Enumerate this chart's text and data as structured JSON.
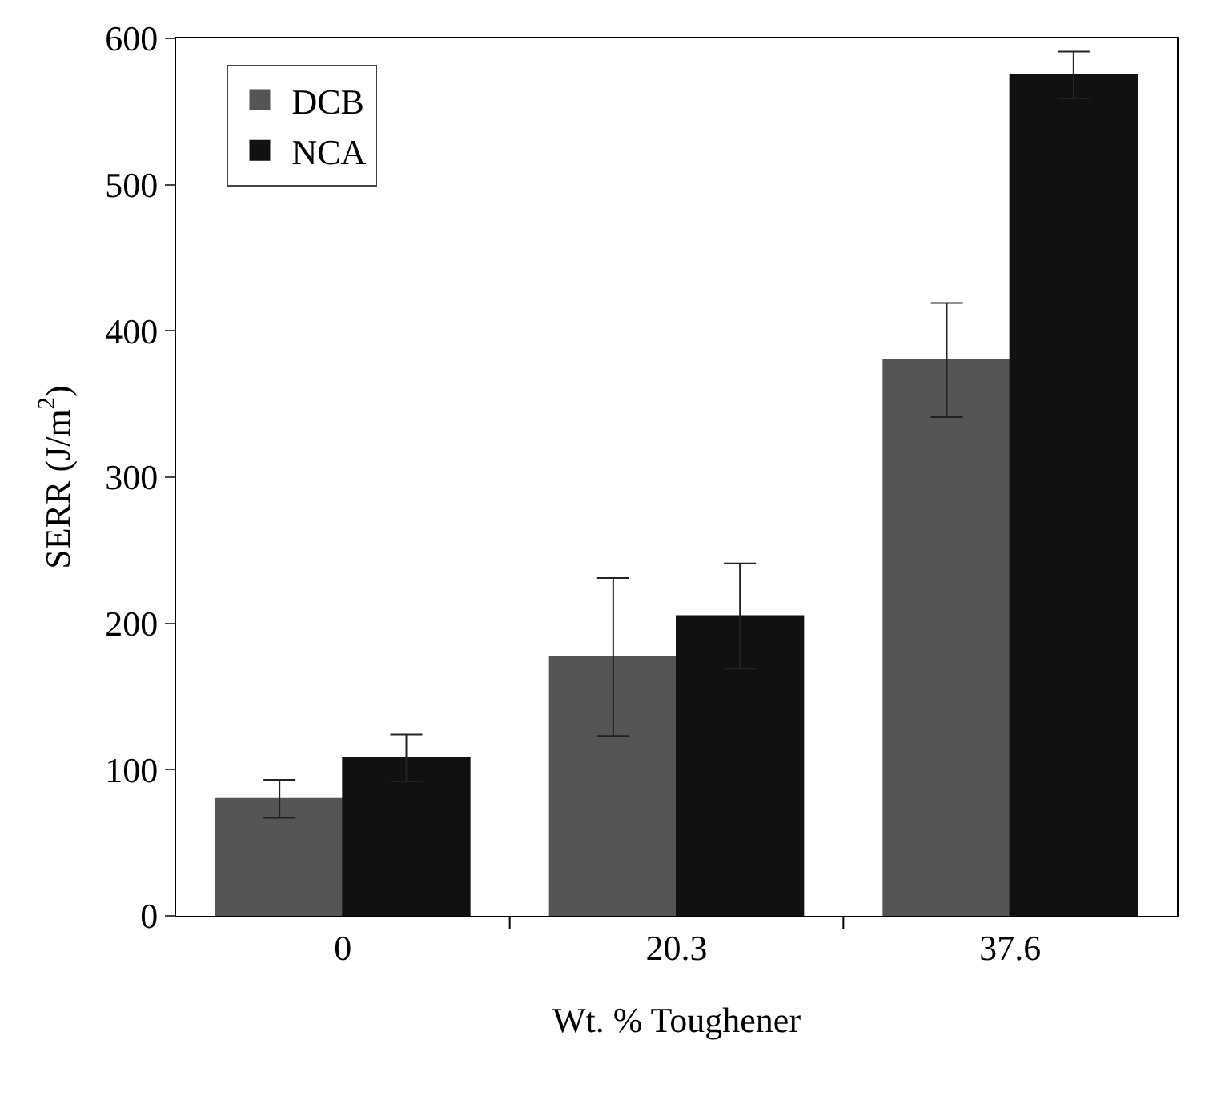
{
  "chart_data": {
    "type": "bar",
    "xlabel": "Wt. % Toughener",
    "ylabel": "SERR (J/m$^{2}$)",
    "categories": [
      "0",
      "20.3",
      "37.6"
    ],
    "series": [
      {
        "name": "DCB",
        "color": "#555555",
        "values": [
          80,
          177,
          380
        ],
        "errors": [
          13,
          54,
          39
        ]
      },
      {
        "name": "NCA",
        "color": "#111111",
        "values": [
          108,
          205,
          575
        ],
        "errors": [
          16,
          36,
          16
        ]
      }
    ],
    "ylim": [
      0,
      600
    ],
    "yticks": [
      0,
      100,
      200,
      300,
      400,
      500,
      600
    ],
    "legend": "top left"
  }
}
